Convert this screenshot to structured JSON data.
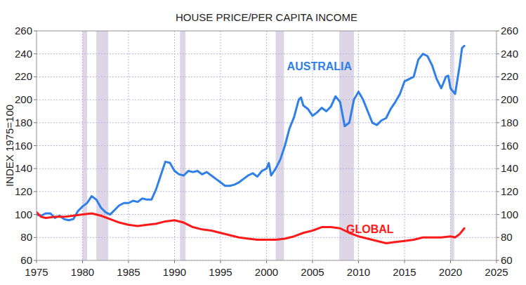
{
  "chart_data": {
    "type": "line",
    "title": "HOUSE PRICE/PER CAPITA INCOME",
    "y_label": "INDEX 1975=100",
    "xlim": [
      1975,
      2025
    ],
    "xticks": [
      1975,
      1980,
      1985,
      1990,
      1995,
      2000,
      2005,
      2010,
      2015,
      2020,
      2025
    ],
    "ylim": [
      60,
      260
    ],
    "yticks": [
      60,
      80,
      100,
      120,
      140,
      160,
      180,
      200,
      220,
      240,
      260
    ],
    "y2lim": [
      60,
      260
    ],
    "y2ticks": [
      60,
      80,
      100,
      120,
      140,
      160,
      180,
      200,
      220,
      240,
      260
    ],
    "grid": true,
    "shaded_periods": [
      [
        1980,
        1980.5
      ],
      [
        1981.5,
        1982.8
      ],
      [
        1990.6,
        1991.2
      ],
      [
        2001,
        2001.9
      ],
      [
        2007.9,
        2009.5
      ],
      [
        2020,
        2020.4
      ]
    ],
    "series": [
      {
        "name": "AUSTRALIA",
        "color": "#2f7fe8",
        "x": [
          1975,
          1975.5,
          1976,
          1976.5,
          1977,
          1977.5,
          1978,
          1978.5,
          1979,
          1979.5,
          1980,
          1980.5,
          1981,
          1981.5,
          1982,
          1982.5,
          1983,
          1983.5,
          1984,
          1984.5,
          1985,
          1985.5,
          1986,
          1986.5,
          1987,
          1987.5,
          1988,
          1988.5,
          1989,
          1989.5,
          1990,
          1990.5,
          1991,
          1991.5,
          1992,
          1992.5,
          1993,
          1993.5,
          1994,
          1994.5,
          1995,
          1995.5,
          1996,
          1996.5,
          1997,
          1997.5,
          1998,
          1998.5,
          1999,
          1999.5,
          2000,
          2000.25,
          2000.5,
          2001,
          2001.5,
          2002,
          2002.5,
          2003,
          2003.5,
          2003.75,
          2004,
          2004.5,
          2005,
          2005.5,
          2006,
          2006.5,
          2007,
          2007.5,
          2008,
          2008.5,
          2009,
          2009.5,
          2010,
          2010.5,
          2011,
          2011.5,
          2012,
          2012.5,
          2013,
          2013.5,
          2014,
          2014.5,
          2015,
          2015.5,
          2016,
          2016.5,
          2017,
          2017.5,
          2018,
          2018.5,
          2019,
          2019.5,
          2019.75,
          2020,
          2020.5,
          2021,
          2021.25,
          2021.5
        ],
        "values": [
          100,
          99,
          101,
          101,
          97,
          99,
          96,
          95,
          96,
          103,
          107,
          110,
          116,
          113,
          106,
          102,
          100,
          104,
          108,
          110,
          110,
          112,
          111,
          114,
          113,
          113,
          122,
          134,
          146,
          145,
          138,
          135,
          134,
          138,
          137,
          138,
          135,
          137,
          134,
          131,
          128,
          125,
          125,
          126,
          128,
          131,
          134,
          136,
          133,
          138,
          140,
          145,
          134,
          140,
          148,
          160,
          175,
          185,
          200,
          202,
          195,
          192,
          186,
          189,
          193,
          190,
          194,
          203,
          198,
          177,
          180,
          200,
          207,
          200,
          190,
          180,
          178,
          182,
          184,
          192,
          198,
          205,
          216,
          218,
          220,
          235,
          240,
          238,
          230,
          218,
          210,
          220,
          221,
          210,
          205,
          230,
          245,
          247
        ]
      },
      {
        "name": "GLOBAL",
        "color": "#ff1a1a",
        "x": [
          1975,
          1975.5,
          1976,
          1977,
          1978,
          1979,
          1980,
          1981,
          1982,
          1983,
          1984,
          1985,
          1986,
          1987,
          1988,
          1989,
          1990,
          1991,
          1992,
          1993,
          1994,
          1995,
          1996,
          1997,
          1998,
          1999,
          2000,
          2001,
          2002,
          2003,
          2004,
          2005,
          2006,
          2007,
          2008,
          2009,
          2010,
          2011,
          2012,
          2013,
          2014,
          2015,
          2016,
          2017,
          2018,
          2019,
          2020,
          2020.5,
          2021,
          2021.5
        ],
        "values": [
          102,
          98,
          97,
          98,
          98,
          99,
          100,
          101,
          99,
          96,
          93,
          91,
          90,
          91,
          92,
          94,
          95,
          93,
          89,
          87,
          86,
          84,
          82,
          80,
          79,
          78,
          78,
          78,
          79,
          81,
          84,
          86,
          89,
          89,
          88,
          84,
          81,
          79,
          77,
          75,
          76,
          77,
          78,
          80,
          80,
          80,
          81,
          80,
          83,
          88
        ]
      }
    ]
  }
}
